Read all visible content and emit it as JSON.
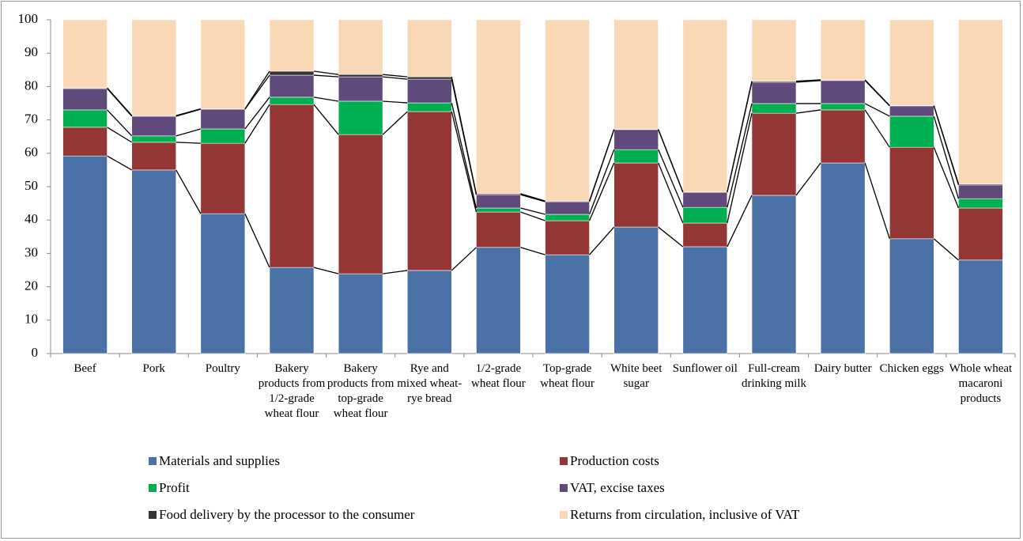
{
  "chart_data": {
    "type": "stacked_bar",
    "categories": [
      "Beef",
      "Pork",
      "Poultry",
      "Bakery products from 1/2-grade wheat flour",
      "Bakery products from top-grade wheat flour",
      "Rye and mixed wheat-rye bread",
      "1/2-grade wheat flour",
      "Top-grade wheat flour",
      "White beet sugar",
      "Sunflower oil",
      "Full-cream drinking milk",
      "Dairy butter",
      "Chicken eggs",
      "Whole wheat macaroni products"
    ],
    "series": [
      {
        "name": "Materials and supplies",
        "color": "#4a72a6",
        "values": [
          59.2,
          55.0,
          41.9,
          25.8,
          23.9,
          24.9,
          31.8,
          29.6,
          37.9,
          32.0,
          47.4,
          57.1,
          34.4,
          28.0
        ]
      },
      {
        "name": "Production costs",
        "color": "#943634",
        "values": [
          8.6,
          8.3,
          21.1,
          48.8,
          41.7,
          47.6,
          10.6,
          10.2,
          19.2,
          7.1,
          24.6,
          15.9,
          27.4,
          15.6
        ]
      },
      {
        "name": "Profit",
        "color": "#00b050",
        "values": [
          5.2,
          1.9,
          4.3,
          2.2,
          10.0,
          2.6,
          1.2,
          1.9,
          4.0,
          4.7,
          2.9,
          1.9,
          9.3,
          2.8
        ]
      },
      {
        "name": "VAT, excise taxes",
        "color": "#604a7b",
        "values": [
          6.4,
          5.9,
          5.9,
          6.6,
          7.3,
          7.1,
          4.0,
          3.8,
          6.0,
          4.5,
          6.4,
          6.9,
          3.1,
          4.1
        ]
      },
      {
        "name": "Food delivery by the processor to the consumer",
        "color": "#333333",
        "values": [
          0.2,
          0.2,
          0.1,
          1.2,
          0.7,
          0.7,
          0.3,
          0.2,
          0.1,
          0.1,
          0.3,
          0.2,
          0.1,
          0.3
        ]
      },
      {
        "name": "Returns from circulation, inclusive of VAT",
        "color": "#fad7b5",
        "values": [
          20.4,
          28.7,
          26.7,
          15.4,
          16.4,
          17.1,
          52.1,
          54.3,
          32.8,
          51.6,
          18.4,
          18.0,
          25.7,
          49.2
        ]
      }
    ],
    "ylim": [
      0,
      100
    ],
    "yticks": [
      0,
      10,
      20,
      30,
      40,
      50,
      60,
      70,
      80,
      90,
      100
    ],
    "grid": false,
    "connectors": true,
    "legend": "bottom"
  }
}
